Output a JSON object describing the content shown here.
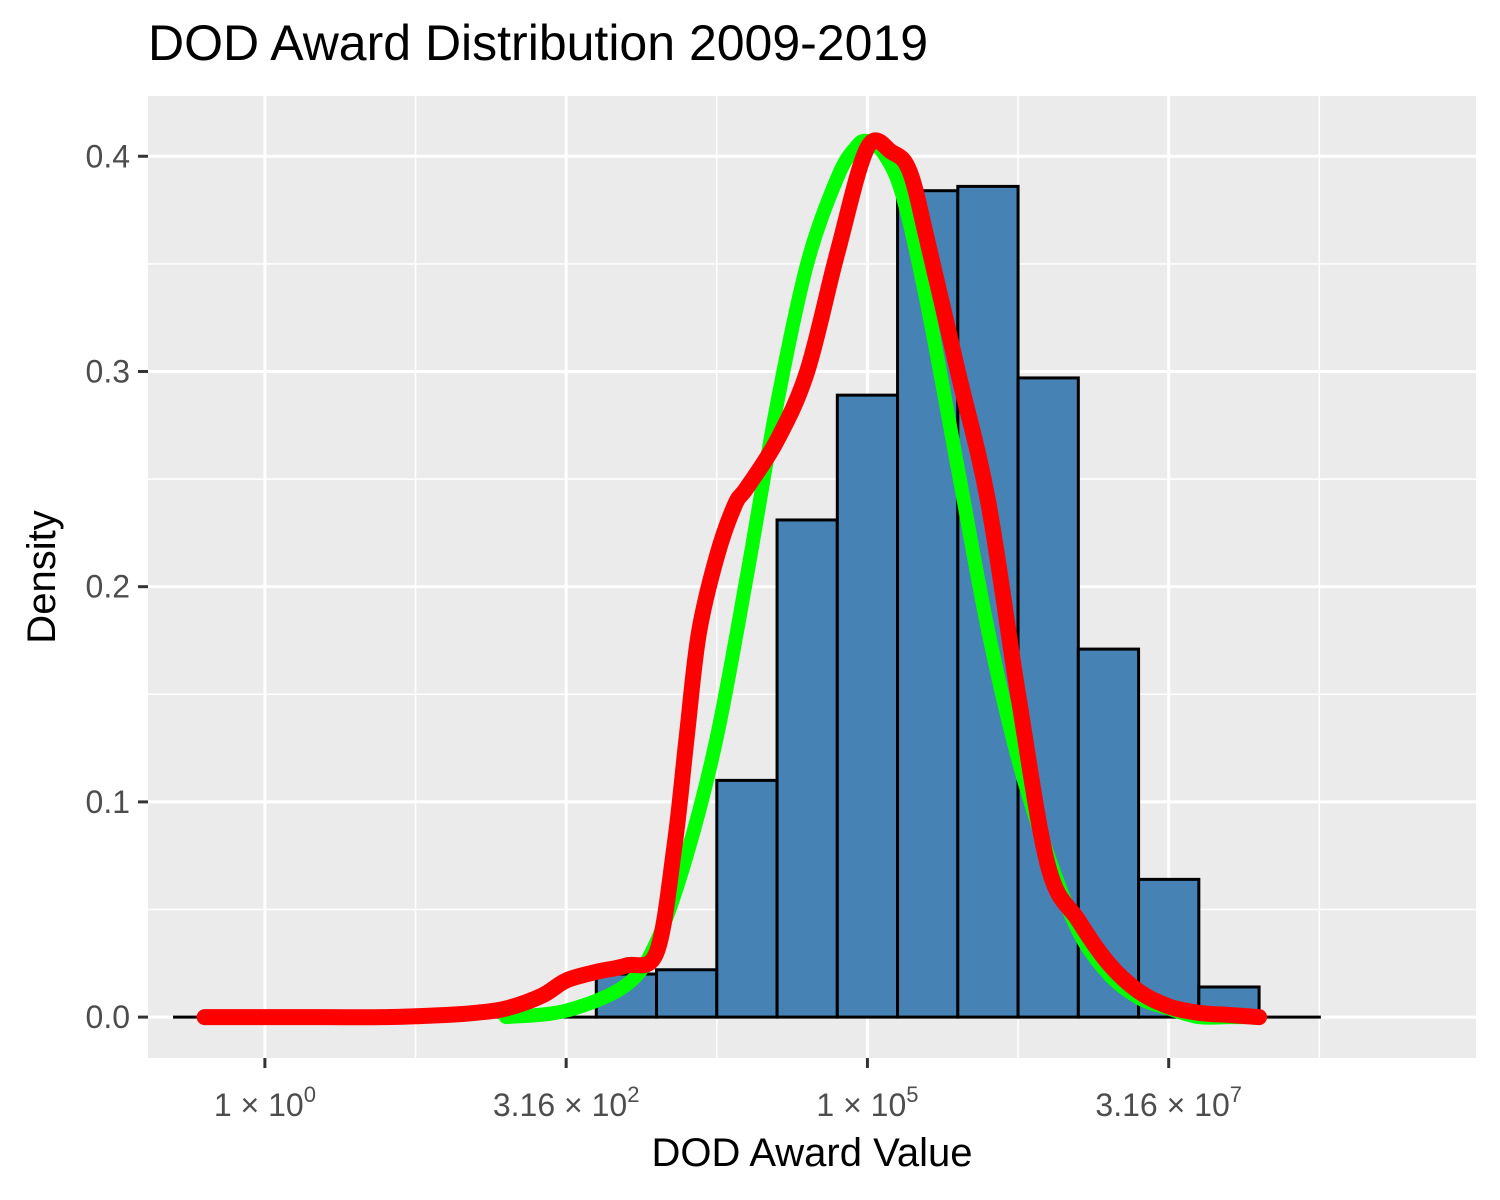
{
  "chart_data": {
    "type": "histogram",
    "title": "DOD Award Distribution 2009-2019",
    "xlabel": "DOD Award Value",
    "ylabel": "Density",
    "x_scale": "log10",
    "xlim_log10": [
      -0.97,
      10.05
    ],
    "ylim": [
      -0.019,
      0.428
    ],
    "y_ticks": [
      0.0,
      0.1,
      0.2,
      0.3,
      0.4
    ],
    "y_tick_labels": [
      "0.0",
      "0.1",
      "0.2",
      "0.3",
      "0.4"
    ],
    "x_ticks_log10": [
      0,
      2.5,
      5,
      7.5
    ],
    "x_tick_labels": [
      {
        "mantissa": "1",
        "sup": "0"
      },
      {
        "mantissa": "3.16",
        "sup": "2"
      },
      {
        "mantissa": "1",
        "sup": "5"
      },
      {
        "mantissa": "3.16",
        "sup": "7"
      }
    ],
    "x_minor_ticks_log10": [
      1.25,
      3.75,
      6.25,
      8.75
    ],
    "grid": true,
    "panel_background": "#ebebeb",
    "bins_log10": {
      "edges": [
        -0.75,
        -0.25,
        0.25,
        0.75,
        1.25,
        1.75,
        2.25,
        2.75,
        3.25,
        3.75,
        4.25,
        4.75,
        5.25,
        5.75,
        6.25,
        6.75,
        7.25,
        7.75,
        8.25,
        8.75
      ],
      "density": [
        0.0,
        0.0,
        0.0,
        0.0,
        0.0,
        0.0,
        0.0,
        0.02,
        0.022,
        0.11,
        0.231,
        0.289,
        0.384,
        0.386,
        0.297,
        0.171,
        0.064,
        0.014,
        0.0
      ]
    },
    "bar_fill": "#4682b4",
    "bar_outline": "#000000",
    "series": [
      {
        "color": "#00ff00",
        "kind": "fitted normal density",
        "x_log10": [
          2.0,
          2.5,
          3.0,
          3.25,
          3.5,
          3.75,
          4.0,
          4.25,
          4.5,
          4.75,
          4.9,
          5.0,
          5.15,
          5.3,
          5.5,
          5.75,
          6.0,
          6.25,
          6.5,
          6.75,
          7.0,
          7.25,
          7.5,
          7.75,
          8.0,
          8.25
        ],
        "y": [
          0.0,
          0.003,
          0.015,
          0.035,
          0.075,
          0.13,
          0.205,
          0.285,
          0.35,
          0.39,
          0.404,
          0.407,
          0.4,
          0.38,
          0.33,
          0.255,
          0.18,
          0.12,
          0.075,
          0.04,
          0.02,
          0.009,
          0.004,
          0.0,
          0.0,
          0.0
        ]
      },
      {
        "color": "#ff0000",
        "kind": "kernel density",
        "x_log10": [
          -0.5,
          0.0,
          0.5,
          1.0,
          1.5,
          1.75,
          2.0,
          2.3,
          2.5,
          2.75,
          3.0,
          3.25,
          3.4,
          3.5,
          3.6,
          3.75,
          3.9,
          4.0,
          4.25,
          4.5,
          4.75,
          5.0,
          5.2,
          5.35,
          5.5,
          5.75,
          6.0,
          6.25,
          6.5,
          6.75,
          7.0,
          7.25,
          7.5,
          7.75,
          8.0,
          8.25
        ],
        "y": [
          0.0,
          0.0,
          0.0,
          0.0,
          0.001,
          0.002,
          0.004,
          0.01,
          0.017,
          0.021,
          0.024,
          0.03,
          0.08,
          0.13,
          0.178,
          0.214,
          0.238,
          0.246,
          0.268,
          0.3,
          0.355,
          0.404,
          0.402,
          0.393,
          0.36,
          0.3,
          0.24,
          0.15,
          0.07,
          0.045,
          0.025,
          0.012,
          0.005,
          0.002,
          0.001,
          0.0
        ]
      }
    ]
  }
}
